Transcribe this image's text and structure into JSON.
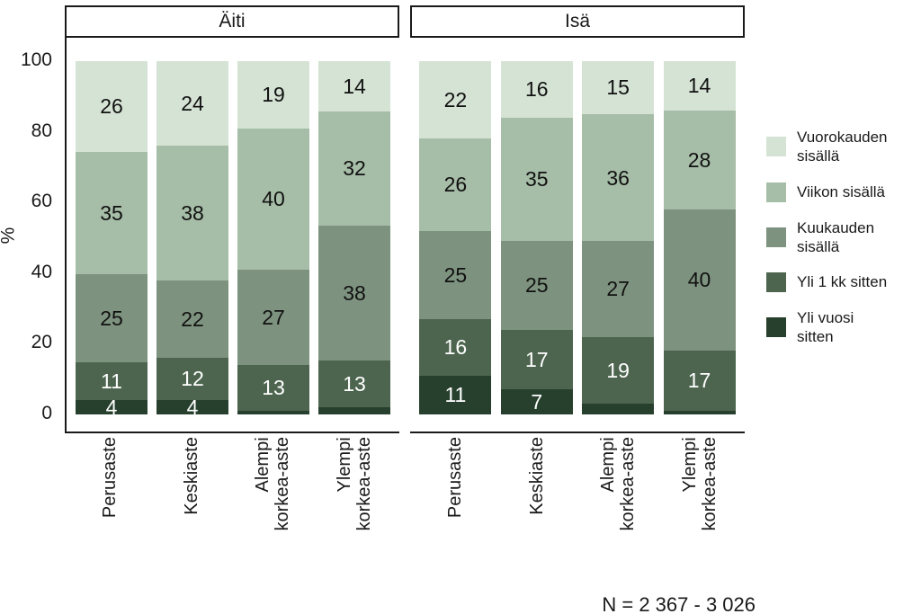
{
  "y_axis": {
    "title": "%",
    "ticks": [
      "100",
      "80",
      "60",
      "40",
      "20",
      "0"
    ]
  },
  "note": "N = 2 367 - 3 026",
  "legend": {
    "items": [
      {
        "name": "vuorokauden-sisalla",
        "lines": [
          "Vuorokauden",
          "sisällä"
        ],
        "color": "#d5e3d5"
      },
      {
        "name": "viikon-sisalla",
        "lines": [
          "Viikon sisällä"
        ],
        "color": "#a6bda7"
      },
      {
        "name": "kuukauden-sisalla",
        "lines": [
          "Kuukauden",
          "sisällä"
        ],
        "color": "#7e937f"
      },
      {
        "name": "yli-1-kk-sitten",
        "lines": [
          "Yli 1 kk sitten"
        ],
        "color": "#4d654f"
      },
      {
        "name": "yli-vuosi-sitten",
        "lines": [
          "Yli vuosi",
          "sitten"
        ],
        "color": "#27402e"
      }
    ]
  },
  "chart_data": {
    "type": "bar",
    "stacked": true,
    "unit": "percent",
    "ylim": [
      0,
      100
    ],
    "y_ticks": [
      100,
      80,
      60,
      40,
      20,
      0
    ],
    "grid": false,
    "legend_position": "right",
    "stack_order_top_to_bottom": [
      "Vuorokauden sisällä",
      "Viikon sisällä",
      "Kuukauden sisällä",
      "Yli 1 kk sitten",
      "Yli vuosi sitten"
    ],
    "segment_colors": [
      "#d5e3d5",
      "#a6bda7",
      "#7e937f",
      "#4d654f",
      "#27402e"
    ],
    "value_label_colors": [
      "#111111",
      "#111111",
      "#111111",
      "#ffffff",
      "#ffffff"
    ],
    "categories": [
      "Perusaste",
      "Keskiaste",
      "Alempi korkea-aste",
      "Ylempi korkea-aste"
    ],
    "category_label_lines": [
      [
        "Perusaste"
      ],
      [
        "Keskiaste"
      ],
      [
        "Alempi",
        "korkea-aste"
      ],
      [
        "Ylempi",
        "korkea-aste"
      ]
    ],
    "facets": [
      {
        "title": "Äiti",
        "bars": [
          {
            "category": "Perusaste",
            "values": [
              26,
              35,
              25,
              11,
              4
            ],
            "labels": [
              "26",
              "35",
              "25",
              "11",
              "4"
            ]
          },
          {
            "category": "Keskiaste",
            "values": [
              24,
              38,
              22,
              12,
              4
            ],
            "labels": [
              "24",
              "38",
              "22",
              "12",
              "4"
            ]
          },
          {
            "category": "Alempi korkea-aste",
            "values": [
              19,
              40,
              27,
              13,
              1
            ],
            "labels": [
              "19",
              "40",
              "27",
              "13",
              ""
            ]
          },
          {
            "category": "Ylempi korkea-aste",
            "values": [
              14,
              32,
              38,
              13,
              2
            ],
            "labels": [
              "14",
              "32",
              "38",
              "13",
              ""
            ]
          }
        ]
      },
      {
        "title": "Isä",
        "bars": [
          {
            "category": "Perusaste",
            "values": [
              22,
              26,
              25,
              16,
              11
            ],
            "labels": [
              "22",
              "26",
              "25",
              "16",
              "11"
            ]
          },
          {
            "category": "Keskiaste",
            "values": [
              16,
              35,
              25,
              17,
              7
            ],
            "labels": [
              "16",
              "35",
              "25",
              "17",
              "7"
            ]
          },
          {
            "category": "Alempi korkea-aste",
            "values": [
              15,
              36,
              27,
              19,
              3
            ],
            "labels": [
              "15",
              "36",
              "27",
              "19",
              ""
            ]
          },
          {
            "category": "Ylempi korkea-aste",
            "values": [
              14,
              28,
              40,
              17,
              1
            ],
            "labels": [
              "14",
              "28",
              "40",
              "17",
              ""
            ]
          }
        ]
      }
    ]
  }
}
